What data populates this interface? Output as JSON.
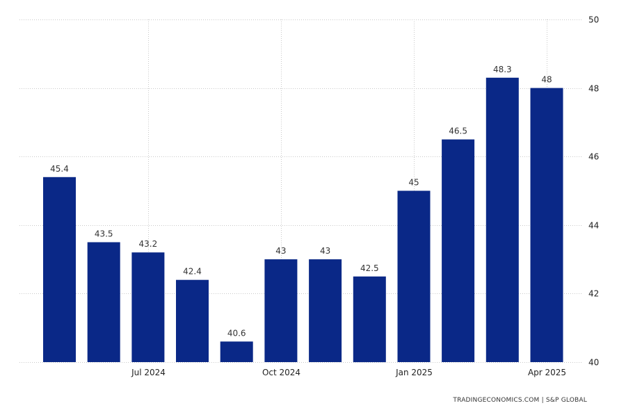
{
  "source_label": "TRADINGECONOMICS.COM | S&P GLOBAL",
  "chart_data": {
    "type": "bar",
    "categories": [
      "2024-05",
      "2024-06",
      "2024-07",
      "2024-08",
      "2024-09",
      "2024-10",
      "2024-11",
      "2024-12",
      "2025-01",
      "2025-02",
      "2025-03",
      "2025-04"
    ],
    "values": [
      45.4,
      43.5,
      43.2,
      42.4,
      40.6,
      43,
      43,
      42.5,
      45,
      46.5,
      48.3,
      48
    ],
    "x_tick_labels": [
      {
        "category": "2024-07",
        "label": "Jul 2024"
      },
      {
        "category": "2024-10",
        "label": "Oct 2024"
      },
      {
        "category": "2025-01",
        "label": "Jan 2025"
      },
      {
        "category": "2025-04",
        "label": "Apr 2025"
      }
    ],
    "y_ticks": [
      40,
      42,
      44,
      46,
      48,
      50
    ],
    "ylim": [
      40,
      50
    ],
    "y_axis_side": "right",
    "grid": true,
    "bar_color": "#0a2887",
    "title": "",
    "xlabel": "",
    "ylabel": ""
  }
}
